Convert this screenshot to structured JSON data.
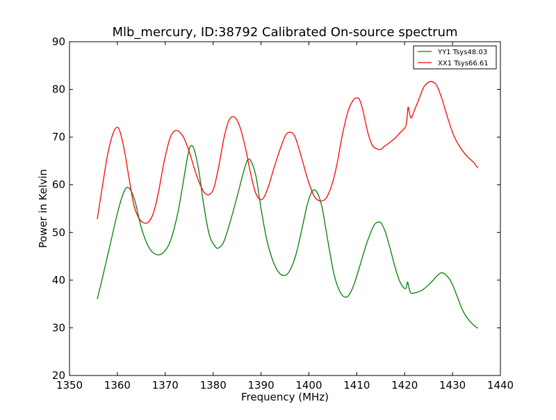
{
  "chart_data": {
    "type": "line",
    "title": "Mlb_mercury, ID:38792 Calibrated On-source spectrum",
    "xlabel": "Frequency (MHz)",
    "ylabel": "Power in Kelvin",
    "xlim": [
      1350,
      1440
    ],
    "ylim": [
      20,
      90
    ],
    "xticks": [
      1350,
      1360,
      1370,
      1380,
      1390,
      1400,
      1410,
      1420,
      1430,
      1440
    ],
    "yticks": [
      20,
      30,
      40,
      50,
      60,
      70,
      80,
      90
    ],
    "grid": false,
    "legend_position": "top-right",
    "series": [
      {
        "name": "YY1 Tsys48.03",
        "color": "#008000",
        "x": [
          1355.8,
          1357,
          1358.5,
          1360,
          1361,
          1361.8,
          1362.7,
          1363.7,
          1365,
          1366.5,
          1368,
          1369.5,
          1371,
          1372.5,
          1373.5,
          1374.5,
          1375.2,
          1376,
          1377,
          1378,
          1379.2,
          1380.5,
          1381.2,
          1382.2,
          1383.5,
          1385,
          1386.3,
          1387.2,
          1388,
          1389,
          1390,
          1391.2,
          1392.5,
          1393.8,
          1395,
          1396,
          1397.2,
          1398.5,
          1399.7,
          1400.8,
          1401.8,
          1402.8,
          1404,
          1405.3,
          1406.7,
          1408,
          1409.2,
          1410.5,
          1412,
          1413.5,
          1414.5,
          1415.2,
          1416,
          1417,
          1418.2,
          1419.2,
          1420.2,
          1420.6,
          1420.9,
          1421.3,
          1422,
          1423.5,
          1425,
          1426.5,
          1427.5,
          1428.5,
          1429.8,
          1431,
          1432.2,
          1433.5,
          1434.5,
          1435.3
        ],
        "y": [
          36,
          41,
          47.5,
          54,
          57.5,
          59.3,
          59,
          56.5,
          51,
          47,
          45.4,
          45.7,
          48,
          53.5,
          59,
          65,
          68,
          67.5,
          63,
          56,
          49.5,
          47,
          46.8,
          48,
          52,
          57.5,
          62.5,
          65.2,
          64.8,
          61.5,
          55,
          48.5,
          44,
          41.5,
          41,
          42,
          45,
          50.5,
          56,
          58.8,
          58.2,
          55,
          48,
          41,
          37.2,
          36.5,
          38.5,
          42.5,
          47.5,
          51.3,
          52.2,
          51.8,
          50,
          46.5,
          42,
          39.3,
          38.2,
          39.6,
          38.4,
          37.3,
          37.3,
          37.8,
          39,
          40.6,
          41.5,
          41.2,
          39.5,
          36.5,
          33.5,
          31.5,
          30.5,
          29.9
        ]
      },
      {
        "name": "XX1 Tsys66.61",
        "color": "#ff0000",
        "x": [
          1355.8,
          1357,
          1358,
          1359,
          1359.8,
          1360.5,
          1361.5,
          1362.5,
          1363.5,
          1364.5,
          1365.5,
          1366.5,
          1367.5,
          1368.5,
          1369.8,
          1371,
          1372,
          1372.8,
          1373.8,
          1375,
          1376.2,
          1377.3,
          1378.3,
          1379.3,
          1380.2,
          1381.2,
          1382.3,
          1383.3,
          1384.2,
          1385,
          1385.8,
          1386.8,
          1387.8,
          1388.8,
          1389.7,
          1390.5,
          1391.5,
          1392.7,
          1394,
          1395.2,
          1396.2,
          1397,
          1397.8,
          1398.8,
          1399.8,
          1401,
          1402,
          1403,
          1403.8,
          1404.8,
          1405.8,
          1407,
          1408.2,
          1409.3,
          1410,
          1410.6,
          1411.3,
          1412.3,
          1413.3,
          1414.3,
          1415,
          1415.7,
          1416.8,
          1418,
          1419.3,
          1420.3,
          1420.7,
          1421,
          1421.4,
          1422,
          1423,
          1424,
          1425,
          1425.8,
          1426.7,
          1427.8,
          1429,
          1430.2,
          1431.5,
          1433,
          1434.3,
          1435.3
        ],
        "y": [
          52.8,
          60.5,
          66.5,
          70.5,
          72,
          71.3,
          67,
          61,
          55.5,
          53,
          52,
          52.2,
          54,
          58,
          65,
          69.8,
          71.3,
          71.2,
          70,
          67,
          63,
          60,
          58.2,
          58,
          59.5,
          64,
          70,
          73.5,
          74.3,
          73.5,
          71.5,
          67.5,
          62.5,
          58.5,
          57,
          57.2,
          59.5,
          63.5,
          67.5,
          70.5,
          71,
          70.3,
          68,
          64.5,
          61,
          57.8,
          56.7,
          56.7,
          57.5,
          60,
          64,
          70.5,
          75.5,
          77.8,
          78.2,
          77.8,
          75.5,
          71,
          68.2,
          67.5,
          67.4,
          68,
          68.8,
          69.8,
          71.2,
          72.5,
          76.2,
          75,
          74,
          75.5,
          78,
          80.5,
          81.5,
          81.6,
          80.8,
          78,
          74,
          70.5,
          68,
          66,
          64.8,
          63.5
        ]
      }
    ]
  }
}
